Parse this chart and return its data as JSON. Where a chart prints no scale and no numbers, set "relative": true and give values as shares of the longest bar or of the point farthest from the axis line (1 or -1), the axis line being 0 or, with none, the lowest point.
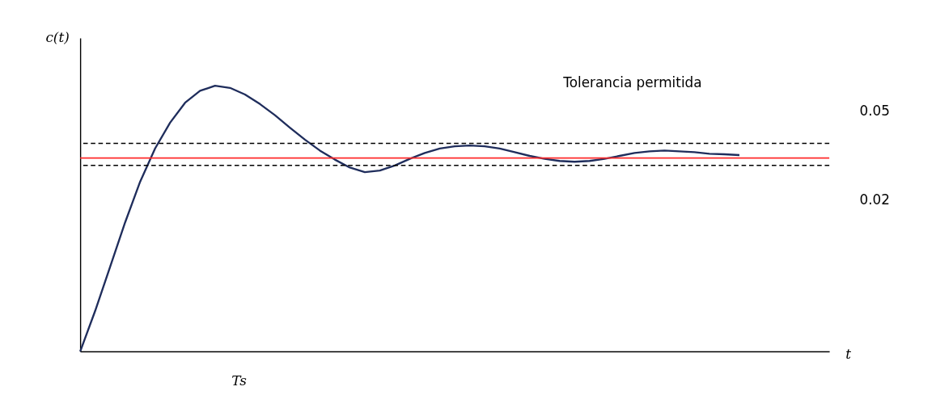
{
  "chart_data": {
    "type": "line",
    "relative": true,
    "xlabel": "t",
    "ylabel": "c(t)",
    "categories": [
      null,
      null,
      null,
      null,
      null,
      null,
      null,
      null,
      null,
      null,
      null,
      null,
      null,
      null,
      null,
      null,
      null,
      null,
      null,
      null,
      null,
      null,
      null,
      null,
      null,
      null,
      null,
      null,
      null,
      null,
      null,
      null,
      null,
      null,
      null,
      null,
      null,
      null,
      null,
      null,
      null,
      null,
      null,
      null,
      null,
      null,
      null,
      null,
      null,
      null,
      null
    ],
    "series": [
      {
        "color": "#1f2d5c",
        "values": [
          0,
          0.153,
          0.319,
          0.486,
          0.639,
          0.764,
          0.861,
          0.936,
          0.981,
          1.0,
          0.992,
          0.967,
          0.931,
          0.889,
          0.842,
          0.797,
          0.756,
          0.722,
          0.692,
          0.675,
          0.681,
          0.7,
          0.725,
          0.747,
          0.764,
          0.772,
          0.775,
          0.772,
          0.764,
          0.75,
          0.736,
          0.725,
          0.717,
          0.714,
          0.717,
          0.725,
          0.736,
          0.747,
          0.753,
          0.756,
          0.753,
          0.75,
          0.744,
          0.742,
          0.739,
          null,
          null,
          null,
          null,
          null,
          null
        ]
      }
    ],
    "ref_lines": [
      {
        "axis": "y",
        "value": 0.728,
        "color": "#ff2a2a",
        "line_style": "solid"
      },
      {
        "axis": "y",
        "value": 0.783,
        "color": "#000000",
        "line_style": "dashed"
      },
      {
        "axis": "y",
        "value": 0.7,
        "color": "#000000",
        "line_style": "dashed"
      }
    ],
    "annotations": [
      "Tolerancia permitida",
      "0.05",
      "0.02",
      "Ts"
    ],
    "marker": "none",
    "line_style": "solid"
  }
}
